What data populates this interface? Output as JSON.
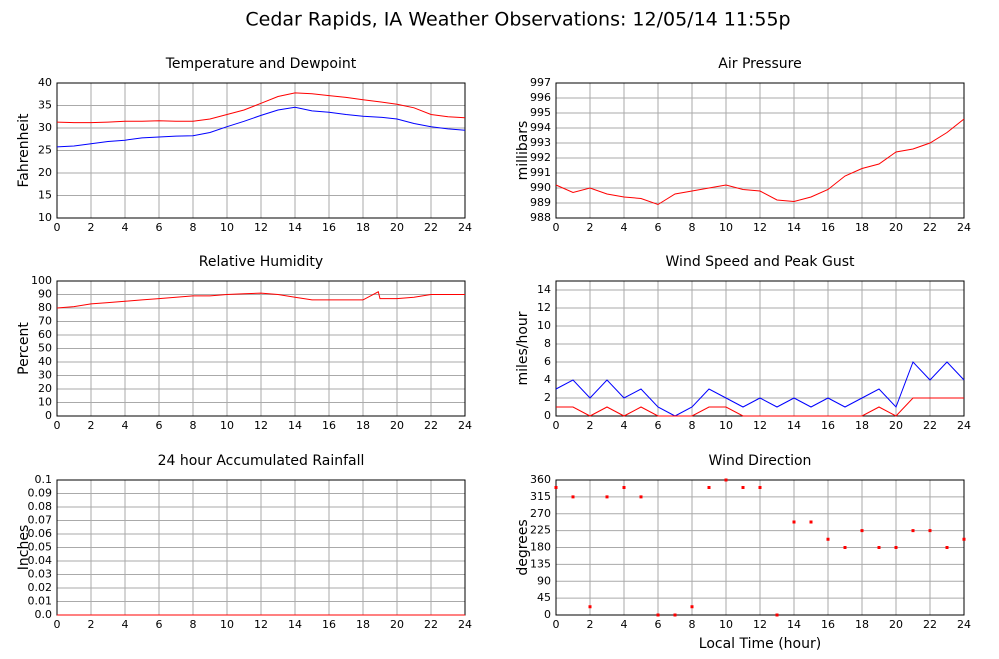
{
  "title": "Cedar Rapids, IA Weather Observations: 12/05/14 11:55p",
  "chart_data": [
    {
      "type": "line",
      "title": "Temperature and Dewpoint",
      "ylabel": "Fahrenheit",
      "x": [
        0,
        1,
        2,
        3,
        4,
        5,
        6,
        7,
        8,
        9,
        10,
        11,
        12,
        13,
        14,
        15,
        16,
        17,
        18,
        19,
        20,
        21,
        22,
        23,
        24
      ],
      "series": [
        {
          "color": "#ff0000",
          "values": [
            31.3,
            31.2,
            31.2,
            31.3,
            31.5,
            31.5,
            31.6,
            31.5,
            31.5,
            32,
            33,
            34,
            35.5,
            37,
            37.8,
            37.6,
            37.2,
            36.8,
            36.3,
            35.8,
            35.3,
            34.5,
            33,
            32.5,
            32.3
          ]
        },
        {
          "color": "#0000ff",
          "values": [
            25.8,
            26,
            26.5,
            27,
            27.3,
            27.8,
            28,
            28.2,
            28.3,
            29,
            30.3,
            31.5,
            32.8,
            34,
            34.6,
            33.8,
            33.5,
            33,
            32.6,
            32.4,
            32,
            31,
            30.3,
            29.8,
            29.5
          ]
        }
      ],
      "xlim": [
        0,
        24
      ],
      "xticks": [
        0,
        2,
        4,
        6,
        8,
        10,
        12,
        14,
        16,
        18,
        20,
        22,
        24
      ],
      "ylim": [
        10,
        40
      ],
      "yticks": [
        10,
        15,
        20,
        25,
        30,
        35,
        40
      ],
      "grid": true
    },
    {
      "type": "line",
      "title": "Air Pressure",
      "ylabel": "millibars",
      "x": [
        0,
        1,
        2,
        3,
        4,
        5,
        6,
        7,
        8,
        9,
        10,
        11,
        12,
        13,
        14,
        15,
        16,
        17,
        18,
        19,
        20,
        21,
        22,
        23,
        24
      ],
      "series": [
        {
          "color": "#ff0000",
          "values": [
            990.2,
            989.7,
            990.0,
            989.6,
            989.4,
            989.3,
            988.9,
            989.6,
            989.8,
            990.0,
            990.2,
            989.9,
            989.8,
            989.2,
            989.1,
            989.4,
            989.9,
            990.8,
            991.3,
            991.6,
            992.4,
            992.6,
            993.0,
            993.7,
            994.6
          ]
        }
      ],
      "xlim": [
        0,
        24
      ],
      "xticks": [
        0,
        2,
        4,
        6,
        8,
        10,
        12,
        14,
        16,
        18,
        20,
        22,
        24
      ],
      "ylim": [
        988,
        997
      ],
      "yticks": [
        988,
        989,
        990,
        991,
        992,
        993,
        994,
        995,
        996,
        997
      ],
      "grid": true
    },
    {
      "type": "line",
      "title": "Relative Humidity",
      "ylabel": "Percent",
      "x": [
        0,
        1,
        2,
        3,
        4,
        5,
        6,
        7,
        8,
        9,
        10,
        11,
        12,
        13,
        14,
        15,
        16,
        17,
        18,
        18.9,
        19,
        20,
        21,
        22,
        23,
        24
      ],
      "series": [
        {
          "color": "#ff0000",
          "values": [
            80,
            81,
            83,
            84,
            85,
            86,
            87,
            88,
            89,
            89,
            90,
            90.5,
            91,
            90,
            88,
            86,
            86,
            86,
            86,
            92,
            87,
            87,
            88,
            90,
            90,
            90
          ]
        }
      ],
      "xlim": [
        0,
        24
      ],
      "xticks": [
        0,
        2,
        4,
        6,
        8,
        10,
        12,
        14,
        16,
        18,
        20,
        22,
        24
      ],
      "ylim": [
        0,
        100
      ],
      "yticks": [
        0,
        10,
        20,
        30,
        40,
        50,
        60,
        70,
        80,
        90,
        100
      ],
      "grid": true
    },
    {
      "type": "line",
      "title": "Wind Speed and Peak Gust",
      "ylabel": "miles/hour",
      "x": [
        0,
        1,
        2,
        3,
        4,
        5,
        6,
        7,
        8,
        9,
        10,
        11,
        12,
        13,
        14,
        15,
        16,
        17,
        18,
        19,
        20,
        21,
        22,
        23,
        24
      ],
      "series": [
        {
          "color": "#0000ff",
          "values": [
            3,
            4,
            2,
            4,
            2,
            3,
            1,
            0,
            1,
            3,
            2,
            1,
            2,
            1,
            2,
            1,
            2,
            1,
            2,
            3,
            1,
            6,
            4,
            6,
            4
          ]
        },
        {
          "color": "#ff0000",
          "values": [
            1,
            1,
            0,
            1,
            0,
            1,
            0,
            0,
            0,
            1,
            1,
            0,
            0,
            0,
            0,
            0,
            0,
            0,
            0,
            1,
            0,
            2,
            2,
            2,
            2
          ]
        }
      ],
      "xlim": [
        0,
        24
      ],
      "xticks": [
        0,
        2,
        4,
        6,
        8,
        10,
        12,
        14,
        16,
        18,
        20,
        22,
        24
      ],
      "ylim": [
        0,
        15
      ],
      "yticks": [
        0,
        2,
        4,
        6,
        8,
        10,
        12,
        14
      ],
      "grid": true
    },
    {
      "type": "line",
      "title": "24 hour Accumulated Rainfall",
      "ylabel": "Inches",
      "x": [
        0,
        1,
        2,
        3,
        4,
        5,
        6,
        7,
        8,
        9,
        10,
        11,
        12,
        13,
        14,
        15,
        16,
        17,
        18,
        19,
        20,
        21,
        22,
        23,
        24
      ],
      "series": [
        {
          "color": "#ff0000",
          "values": [
            0,
            0,
            0,
            0,
            0,
            0,
            0,
            0,
            0,
            0,
            0,
            0,
            0,
            0,
            0,
            0,
            0,
            0,
            0,
            0,
            0,
            0,
            0,
            0,
            0
          ]
        }
      ],
      "xlim": [
        0,
        24
      ],
      "xticks": [
        0,
        2,
        4,
        6,
        8,
        10,
        12,
        14,
        16,
        18,
        20,
        22,
        24
      ],
      "ylim": [
        0,
        0.1
      ],
      "yticks": [
        {
          "value": 0,
          "label": "0.0"
        },
        0.01,
        0.02,
        0.03,
        0.04,
        0.05,
        0.06,
        0.07,
        0.08,
        0.09,
        0.1
      ],
      "grid": true
    },
    {
      "type": "scatter",
      "title": "Wind Direction",
      "ylabel": "degrees",
      "xlabel": "Local Time (hour)",
      "x": [
        0,
        1,
        2,
        3,
        4,
        5,
        6,
        7,
        8,
        9,
        10,
        11,
        12,
        13,
        14,
        15,
        16,
        17,
        18,
        19,
        20,
        21,
        22,
        23,
        24
      ],
      "series": [
        {
          "color": "#ff0000",
          "values": [
            340,
            315,
            22,
            315,
            340,
            315,
            0,
            0,
            22,
            340,
            360,
            340,
            340,
            0,
            248,
            248,
            202,
            180,
            225,
            180,
            180,
            225,
            225,
            180,
            202
          ]
        }
      ],
      "xlim": [
        0,
        24
      ],
      "xticks": [
        0,
        2,
        4,
        6,
        8,
        10,
        12,
        14,
        16,
        18,
        20,
        22,
        24
      ],
      "ylim": [
        0,
        360
      ],
      "yticks": [
        0,
        45,
        90,
        135,
        180,
        225,
        270,
        315,
        360
      ],
      "grid": true
    }
  ]
}
